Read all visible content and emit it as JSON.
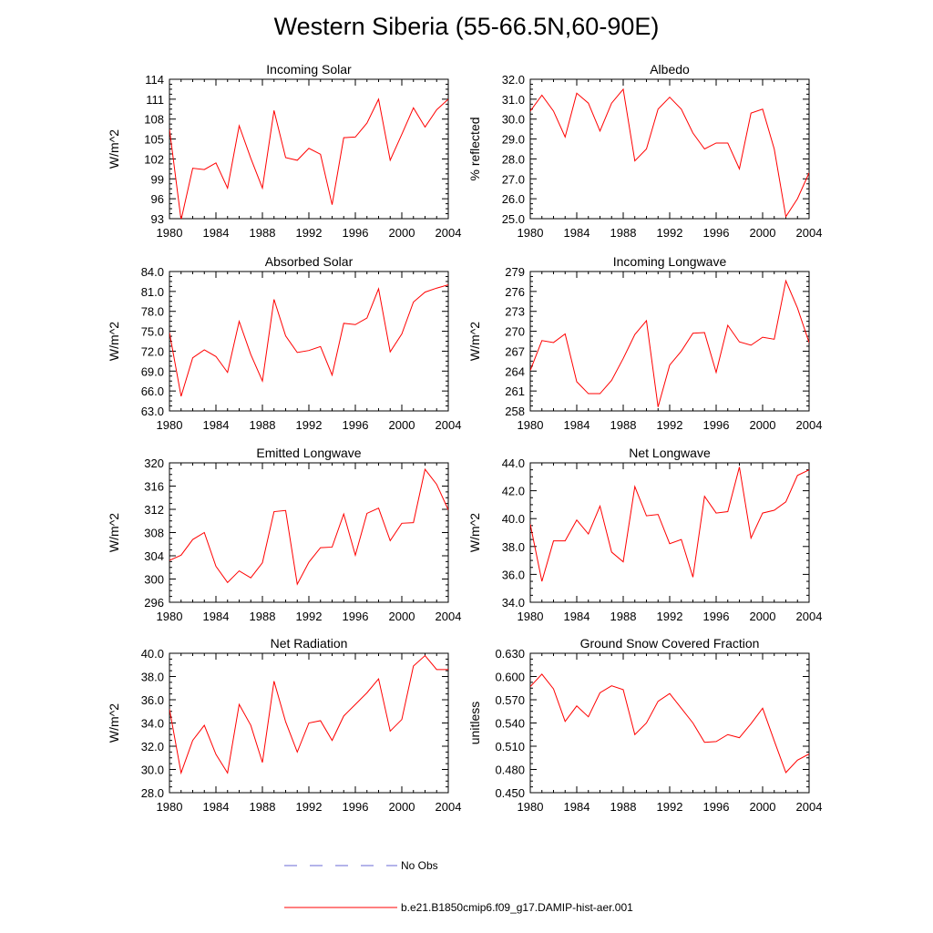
{
  "title": "Western Siberia (55-66.5N,60-90E)",
  "legend": {
    "entries": [
      {
        "label": "No Obs",
        "color": "#6a6ad6",
        "style": "dashed"
      },
      {
        "label": "b.e21.B1850cmip6.f09_g17.DAMIP-hist-aer.001",
        "color": "#ff0000",
        "style": "solid"
      }
    ]
  },
  "chart_data": [
    {
      "type": "line",
      "title": "Incoming Solar",
      "xlabel": "",
      "ylabel": "W/m^2",
      "xlim": [
        1980,
        2004
      ],
      "ylim": [
        93,
        114
      ],
      "xticks": [
        "1980",
        "1984",
        "1988",
        "1992",
        "1996",
        "2000",
        "2004"
      ],
      "yticks": [
        "93",
        "96",
        "99",
        "102",
        "105",
        "108",
        "111",
        "114"
      ],
      "series": [
        {
          "color": "#ff0000",
          "x": [
            1980,
            1981,
            1982,
            1983,
            1984,
            1985,
            1986,
            1987,
            1988,
            1989,
            1990,
            1991,
            1992,
            1993,
            1994,
            1995,
            1996,
            1997,
            1998,
            1999,
            2000,
            2001,
            2002,
            2003,
            2004
          ],
          "values": [
            106.5,
            92.8,
            100.6,
            100.4,
            101.4,
            97.6,
            107.0,
            102.1,
            97.6,
            109.3,
            102.2,
            101.8,
            103.6,
            102.7,
            95.1,
            105.2,
            105.3,
            107.4,
            111.0,
            101.8,
            105.7,
            109.7,
            106.8,
            109.4,
            111.0
          ]
        }
      ]
    },
    {
      "type": "line",
      "title": "Albedo",
      "xlabel": "",
      "ylabel": "% reflected",
      "xlim": [
        1980,
        2004
      ],
      "ylim": [
        25.0,
        32.0
      ],
      "xticks": [
        "1980",
        "1984",
        "1988",
        "1992",
        "1996",
        "2000",
        "2004"
      ],
      "yticks": [
        "25.0",
        "26.0",
        "27.0",
        "28.0",
        "29.0",
        "30.0",
        "31.0",
        "32.0"
      ],
      "series": [
        {
          "color": "#ff0000",
          "x": [
            1980,
            1981,
            1982,
            1983,
            1984,
            1985,
            1986,
            1987,
            1988,
            1989,
            1990,
            1991,
            1992,
            1993,
            1994,
            1995,
            1996,
            1997,
            1998,
            1999,
            2000,
            2001,
            2002,
            2003,
            2004
          ],
          "values": [
            30.4,
            31.2,
            30.4,
            29.1,
            31.3,
            30.8,
            29.4,
            30.8,
            31.5,
            27.9,
            28.5,
            30.5,
            31.1,
            30.5,
            29.3,
            28.5,
            28.8,
            28.8,
            27.5,
            30.3,
            30.5,
            28.5,
            25.1,
            26.0,
            27.3
          ]
        }
      ]
    },
    {
      "type": "line",
      "title": "Absorbed Solar",
      "xlabel": "",
      "ylabel": "W/m^2",
      "xlim": [
        1980,
        2004
      ],
      "ylim": [
        63.0,
        84.0
      ],
      "xticks": [
        "1980",
        "1984",
        "1988",
        "1992",
        "1996",
        "2000",
        "2004"
      ],
      "yticks": [
        "63.0",
        "66.0",
        "69.0",
        "72.0",
        "75.0",
        "78.0",
        "81.0",
        "84.0"
      ],
      "series": [
        {
          "color": "#ff0000",
          "x": [
            1980,
            1981,
            1982,
            1983,
            1984,
            1985,
            1986,
            1987,
            1988,
            1989,
            1990,
            1991,
            1992,
            1993,
            1994,
            1995,
            1996,
            1997,
            1998,
            1999,
            2000,
            2001,
            2002,
            2003,
            2004
          ],
          "values": [
            74.8,
            65.2,
            71.0,
            72.2,
            71.2,
            68.8,
            76.5,
            71.5,
            67.5,
            79.8,
            74.3,
            71.8,
            72.1,
            72.7,
            68.4,
            76.2,
            76.0,
            77.0,
            81.4,
            71.9,
            74.6,
            79.4,
            80.9,
            81.5,
            82.0
          ]
        }
      ]
    },
    {
      "type": "line",
      "title": "Incoming Longwave",
      "xlabel": "",
      "ylabel": "W/m^2",
      "xlim": [
        1980,
        2004
      ],
      "ylim": [
        258,
        279
      ],
      "xticks": [
        "1980",
        "1984",
        "1988",
        "1992",
        "1996",
        "2000",
        "2004"
      ],
      "yticks": [
        "258",
        "261",
        "264",
        "267",
        "270",
        "273",
        "276",
        "279"
      ],
      "series": [
        {
          "color": "#ff0000",
          "x": [
            1980,
            1981,
            1982,
            1983,
            1984,
            1985,
            1986,
            1987,
            1988,
            1989,
            1990,
            1991,
            1992,
            1993,
            1994,
            1995,
            1996,
            1997,
            1998,
            1999,
            2000,
            2001,
            2002,
            2003,
            2004
          ],
          "values": [
            264.1,
            268.6,
            268.3,
            269.6,
            262.4,
            260.6,
            260.6,
            262.6,
            265.9,
            269.5,
            271.6,
            258.6,
            264.9,
            267.0,
            269.7,
            269.8,
            263.8,
            270.9,
            268.4,
            267.9,
            269.1,
            268.8,
            277.6,
            273.5,
            268.3
          ]
        }
      ]
    },
    {
      "type": "line",
      "title": "Emitted Longwave",
      "xlabel": "",
      "ylabel": "W/m^2",
      "xlim": [
        1980,
        2004
      ],
      "ylim": [
        296,
        320
      ],
      "xticks": [
        "1980",
        "1984",
        "1988",
        "1992",
        "1996",
        "2000",
        "2004"
      ],
      "yticks": [
        "296",
        "300",
        "304",
        "308",
        "312",
        "316",
        "320"
      ],
      "series": [
        {
          "color": "#ff0000",
          "x": [
            1980,
            1981,
            1982,
            1983,
            1984,
            1985,
            1986,
            1987,
            1988,
            1989,
            1990,
            1991,
            1992,
            1993,
            1994,
            1995,
            1996,
            1997,
            1998,
            1999,
            2000,
            2001,
            2002,
            2003,
            2004
          ],
          "values": [
            303.2,
            304.1,
            306.8,
            308.0,
            302.2,
            299.4,
            301.4,
            300.2,
            302.8,
            311.6,
            311.8,
            299.1,
            302.9,
            305.4,
            305.5,
            311.2,
            304.1,
            311.3,
            312.2,
            306.6,
            309.6,
            309.7,
            318.9,
            316.3,
            311.9
          ]
        }
      ]
    },
    {
      "type": "line",
      "title": "Net Longwave",
      "xlabel": "",
      "ylabel": "W/m^2",
      "xlim": [
        1980,
        2004
      ],
      "ylim": [
        34.0,
        44.0
      ],
      "xticks": [
        "1980",
        "1984",
        "1988",
        "1992",
        "1996",
        "2000",
        "2004"
      ],
      "yticks": [
        "34.0",
        "36.0",
        "38.0",
        "40.0",
        "42.0",
        "44.0"
      ],
      "series": [
        {
          "color": "#ff0000",
          "x": [
            1980,
            1981,
            1982,
            1983,
            1984,
            1985,
            1986,
            1987,
            1988,
            1989,
            1990,
            1991,
            1992,
            1993,
            1994,
            1995,
            1996,
            1997,
            1998,
            1999,
            2000,
            2001,
            2002,
            2003,
            2004
          ],
          "values": [
            39.6,
            35.5,
            38.4,
            38.4,
            39.9,
            38.9,
            40.9,
            37.6,
            36.9,
            42.3,
            40.2,
            40.3,
            38.2,
            38.5,
            35.8,
            41.6,
            40.4,
            40.5,
            43.7,
            38.6,
            40.4,
            40.6,
            41.2,
            43.1,
            43.5
          ]
        }
      ]
    },
    {
      "type": "line",
      "title": "Net Radiation",
      "xlabel": "",
      "ylabel": "W/m^2",
      "xlim": [
        1980,
        2004
      ],
      "ylim": [
        28.0,
        40.0
      ],
      "xticks": [
        "1980",
        "1984",
        "1988",
        "1992",
        "1996",
        "2000",
        "2004"
      ],
      "yticks": [
        "28.0",
        "30.0",
        "32.0",
        "34.0",
        "36.0",
        "38.0",
        "40.0"
      ],
      "series": [
        {
          "color": "#ff0000",
          "x": [
            1980,
            1981,
            1982,
            1983,
            1984,
            1985,
            1986,
            1987,
            1988,
            1989,
            1990,
            1991,
            1992,
            1993,
            1994,
            1995,
            1996,
            1997,
            1998,
            1999,
            2000,
            2001,
            2002,
            2003,
            2004
          ],
          "values": [
            35.2,
            29.7,
            32.5,
            33.8,
            31.3,
            29.7,
            35.6,
            33.8,
            30.6,
            37.6,
            34.1,
            31.5,
            34.0,
            34.2,
            32.5,
            34.6,
            35.6,
            36.6,
            37.8,
            33.3,
            34.3,
            38.9,
            39.8,
            38.6,
            38.6
          ]
        }
      ]
    },
    {
      "type": "line",
      "title": "Ground Snow Covered Fraction",
      "xlabel": "",
      "ylabel": "unitless",
      "xlim": [
        1980,
        2004
      ],
      "ylim": [
        0.45,
        0.63
      ],
      "xticks": [
        "1980",
        "1984",
        "1988",
        "1992",
        "1996",
        "2000",
        "2004"
      ],
      "yticks": [
        "0.450",
        "0.480",
        "0.510",
        "0.540",
        "0.570",
        "0.600",
        "0.630"
      ],
      "series": [
        {
          "color": "#ff0000",
          "x": [
            1980,
            1981,
            1982,
            1983,
            1984,
            1985,
            1986,
            1987,
            1988,
            1989,
            1990,
            1991,
            1992,
            1993,
            1994,
            1995,
            1996,
            1997,
            1998,
            1999,
            2000,
            2001,
            2002,
            2003,
            2004
          ],
          "values": [
            0.587,
            0.603,
            0.584,
            0.542,
            0.562,
            0.548,
            0.579,
            0.588,
            0.583,
            0.525,
            0.54,
            0.568,
            0.578,
            0.559,
            0.54,
            0.515,
            0.516,
            0.525,
            0.521,
            0.539,
            0.559,
            0.517,
            0.476,
            0.492,
            0.5
          ]
        }
      ]
    }
  ]
}
